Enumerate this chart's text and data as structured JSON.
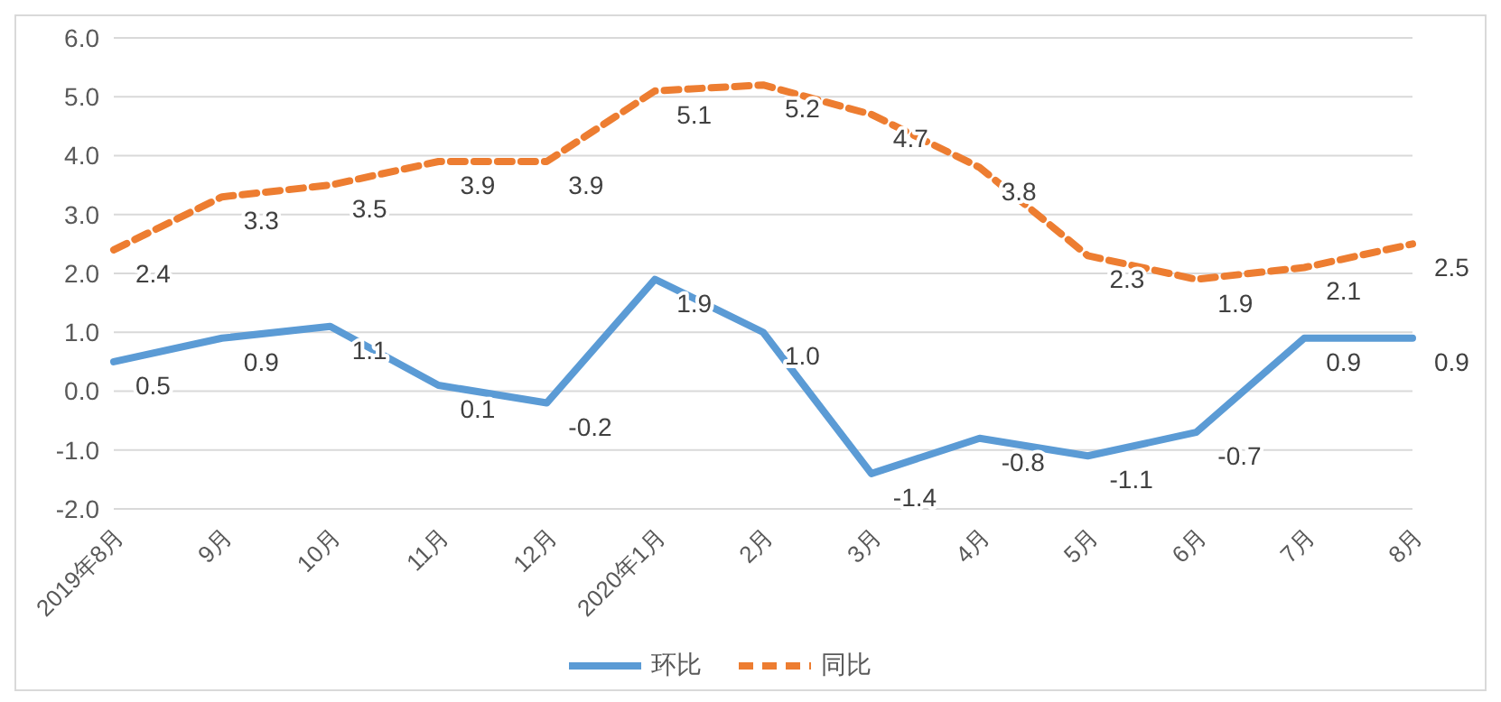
{
  "chart_data": {
    "type": "line",
    "categories": [
      "2019年8月",
      "9月",
      "10月",
      "11月",
      "12月",
      "2020年1月",
      "2月",
      "3月",
      "4月",
      "5月",
      "6月",
      "7月",
      "8月"
    ],
    "series": [
      {
        "name": "环比",
        "color": "#5b9bd5",
        "line_style": "solid",
        "values": [
          0.5,
          0.9,
          1.1,
          0.1,
          -0.2,
          1.9,
          1.0,
          -1.4,
          -0.8,
          -1.1,
          -0.7,
          0.9,
          0.9
        ],
        "value_labels": [
          "0.5",
          "0.9",
          "1.1",
          "0.1",
          "-0.2",
          "1.9",
          "1.0",
          "-1.4",
          "-0.8",
          "-1.1",
          "-0.7",
          "0.9",
          "0.9"
        ]
      },
      {
        "name": "同比",
        "color": "#ed7d31",
        "line_style": "dashed",
        "values": [
          2.4,
          3.3,
          3.5,
          3.9,
          3.9,
          5.1,
          5.2,
          4.7,
          3.8,
          2.3,
          1.9,
          2.1,
          2.5
        ],
        "value_labels": [
          "2.4",
          "3.3",
          "3.5",
          "3.9",
          "3.9",
          "5.1",
          "5.2",
          "4.7",
          "3.8",
          "2.3",
          "1.9",
          "2.1",
          "2.5"
        ]
      }
    ],
    "ylim": [
      -2,
      6
    ],
    "yticks": [
      {
        "value": -2,
        "label": "-2.0"
      },
      {
        "value": -1,
        "label": "-1.0"
      },
      {
        "value": 0,
        "label": "0.0"
      },
      {
        "value": 1,
        "label": "1.0"
      },
      {
        "value": 2,
        "label": "2.0"
      },
      {
        "value": 3,
        "label": "3.0"
      },
      {
        "value": 4,
        "label": "4.0"
      },
      {
        "value": 5,
        "label": "5.0"
      },
      {
        "value": 6,
        "label": "6.0"
      }
    ],
    "grid": "y",
    "legend": "bottom",
    "marker": "none"
  }
}
